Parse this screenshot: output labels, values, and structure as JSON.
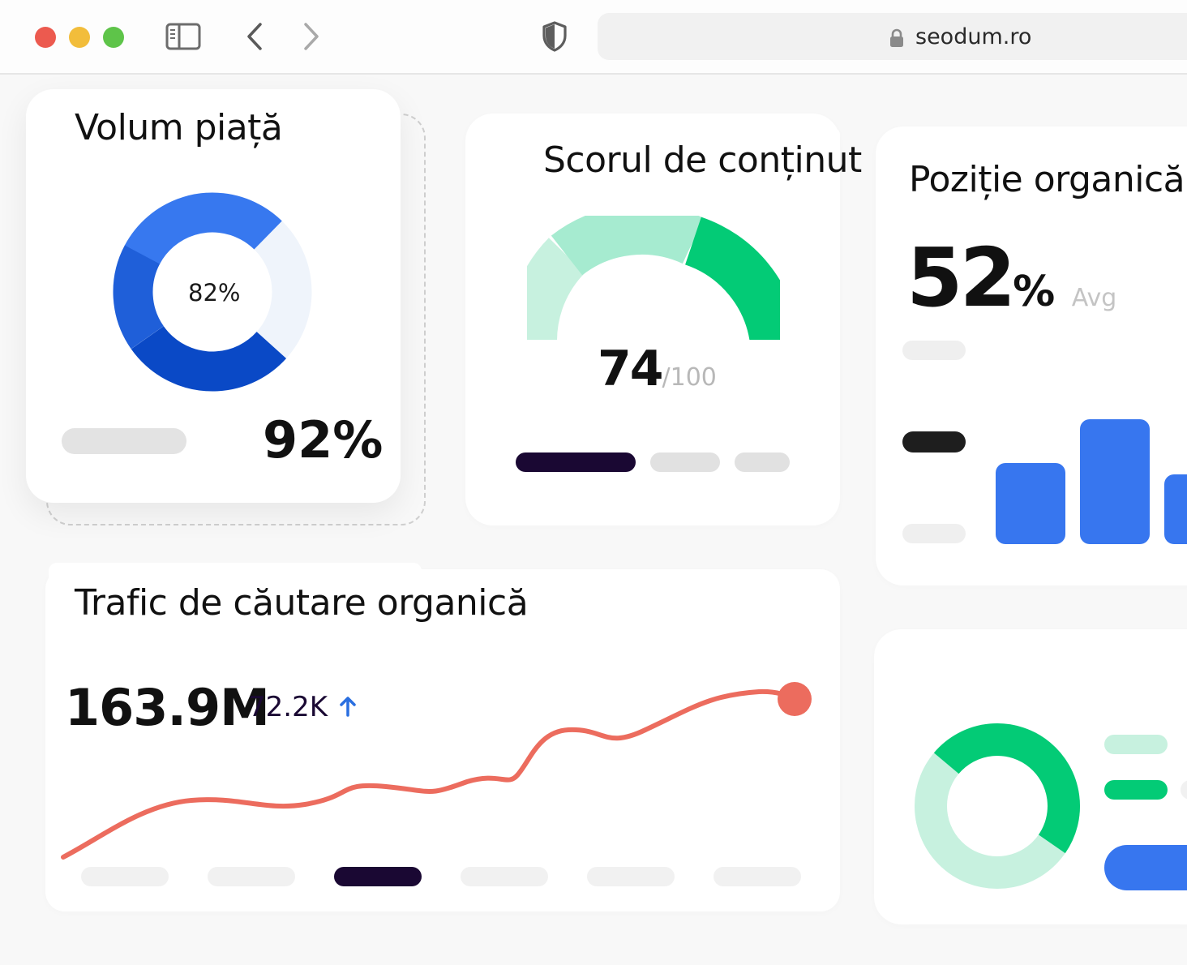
{
  "browser": {
    "url": "seodum.ro",
    "traffic_lights": [
      "#ec5a4f",
      "#f2bd3b",
      "#5ec449"
    ]
  },
  "market_volume": {
    "title": "Volum piață",
    "donut_center": "82%",
    "donut_fill": 0.82,
    "value": "92%",
    "colors": [
      "#1f5fd9",
      "#3778ef",
      "#0a49c6"
    ]
  },
  "content_score": {
    "title": "Scorul de conținut",
    "score": "74",
    "max": "/100",
    "colors": [
      "#c7f1df",
      "#a6ebd0",
      "#03cb76"
    ]
  },
  "organic_position": {
    "title": "Poziție organică",
    "value": "52",
    "unit": "%",
    "label": "Avg",
    "bar_color": "#3776ef"
  },
  "organic_traffic": {
    "title": "Trafic de căutare organică",
    "total": "163.9M",
    "delta": "72.2K",
    "trend": "up-arrow-icon",
    "line_color": "#ec6c5e",
    "active_tab": 2
  },
  "ring_widget": {
    "colors": [
      "#c7f1df",
      "#03cb76",
      "#3776ef"
    ]
  }
}
